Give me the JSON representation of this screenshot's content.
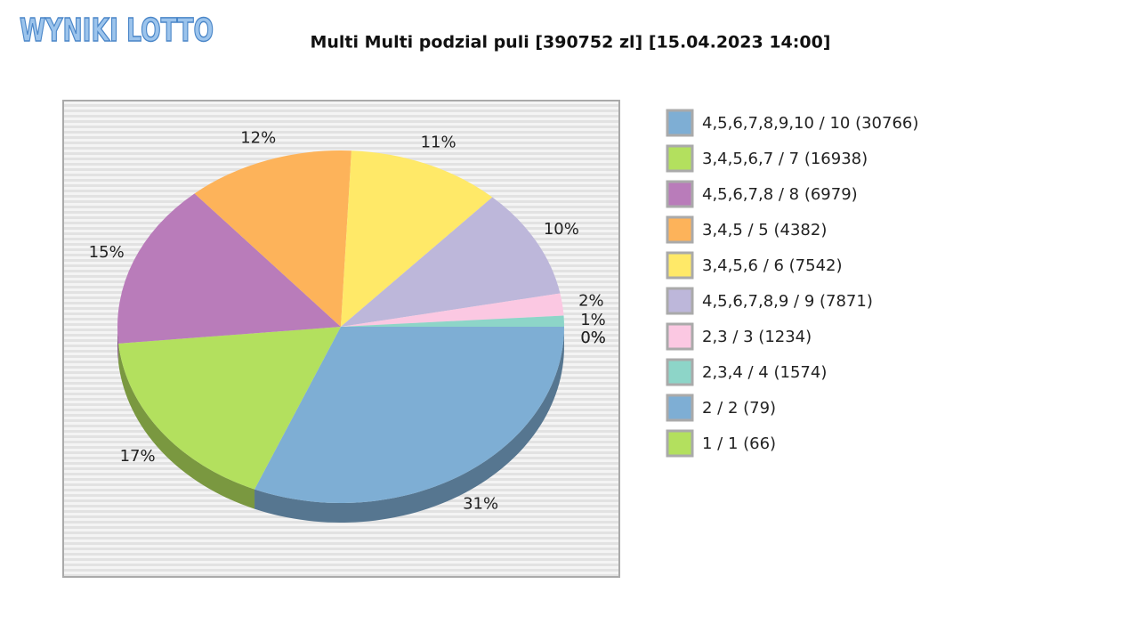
{
  "logo": "WYNIKI LOTTO",
  "chart_data": {
    "type": "pie",
    "title": "Multi Multi podzial puli [390752 zl] [15.04.2023 14:00]",
    "categories": [
      "4,5,6,7,8,9,10 / 10 (30766)",
      "3,4,5,6,7 / 7 (16938)",
      "4,5,6,7,8 / 8 (6979)",
      "3,4,5 / 5 (4382)",
      "3,4,5,6 / 6 (7542)",
      "4,5,6,7,8,9 / 9 (7871)",
      "2,3 / 3 (1234)",
      "2,3,4 / 4 (1574)",
      "2 / 2 (79)",
      "1 / 1 (66)"
    ],
    "values": [
      31,
      17,
      15,
      12,
      11,
      10,
      2,
      1,
      0,
      0
    ],
    "value_labels": [
      "31%",
      "17%",
      "15%",
      "12%",
      "11%",
      "10%",
      "2%",
      "1%",
      "0%",
      "0%"
    ],
    "colors": [
      "#7eaed4",
      "#b3e05e",
      "#b97cba",
      "#fdb35a",
      "#ffe968",
      "#bdb7da",
      "#fbc8e2",
      "#8dd5c8",
      "#7eaed4",
      "#b3e05e"
    ],
    "legend": "right"
  }
}
